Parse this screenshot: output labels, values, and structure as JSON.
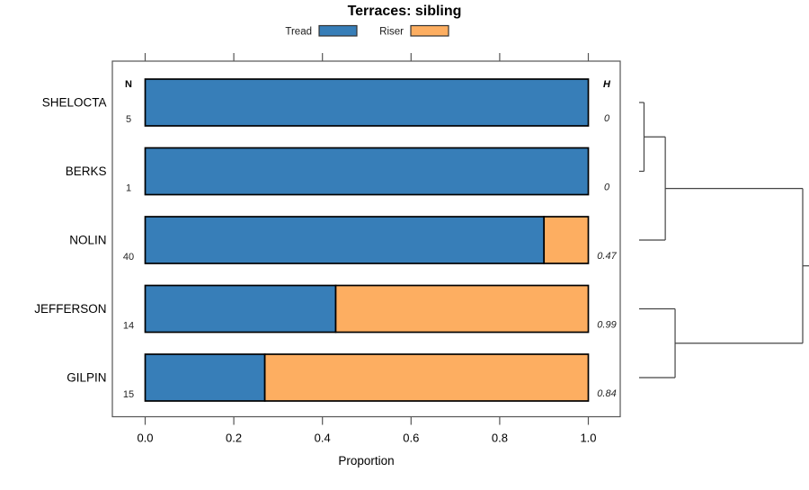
{
  "title": "Terraces: sibling",
  "legend": [
    {
      "label": "Tread",
      "color": "#377EB8"
    },
    {
      "label": "Riser",
      "color": "#FDAE61"
    }
  ],
  "columns": {
    "n_header": "N",
    "h_header": "H"
  },
  "axis": {
    "label": "Proportion",
    "ticks": [
      "0.0",
      "0.2",
      "0.4",
      "0.6",
      "0.8",
      "1.0"
    ],
    "tick_values": [
      0,
      0.2,
      0.4,
      0.6,
      0.8,
      1.0
    ]
  },
  "colors": {
    "tread": "#377EB8",
    "riser": "#FDAE61",
    "bar_border": "#000000",
    "frame": "#555555",
    "dendrogram": "#444444"
  },
  "chart_data": {
    "type": "bar",
    "subtype": "horizontal-stacked-proportion",
    "title": "Terraces: sibling",
    "xlabel": "Proportion",
    "xlim": [
      0,
      1
    ],
    "series_names": [
      "Tread",
      "Riser"
    ],
    "categories": [
      "SHELOCTA",
      "BERKS",
      "NOLIN",
      "JEFFERSON",
      "GILPIN"
    ],
    "rows": [
      {
        "label": "SHELOCTA",
        "n": "5",
        "tread": 1.0,
        "riser": 0.0,
        "h": "0"
      },
      {
        "label": "BERKS",
        "n": "1",
        "tread": 1.0,
        "riser": 0.0,
        "h": "0"
      },
      {
        "label": "NOLIN",
        "n": "40",
        "tread": 0.9,
        "riser": 0.1,
        "h": "0.47"
      },
      {
        "label": "JEFFERSON",
        "n": "14",
        "tread": 0.43,
        "riser": 0.57,
        "h": "0.99"
      },
      {
        "label": "GILPIN",
        "n": "15",
        "tread": 0.27,
        "riser": 0.73,
        "h": "0.84"
      }
    ],
    "dendrogram": {
      "description": "right-side cluster tree, join heights normalized 0-1",
      "joins": [
        {
          "id": "join0",
          "children": [
            "SHELOCTA",
            "BERKS"
          ],
          "height": 0.03
        },
        {
          "id": "join1",
          "children": [
            "join0",
            "NOLIN"
          ],
          "height": 0.16
        },
        {
          "id": "join2",
          "children": [
            "JEFFERSON",
            "GILPIN"
          ],
          "height": 0.22
        },
        {
          "id": "join3",
          "children": [
            "join1",
            "join2"
          ],
          "height": 1.0
        }
      ]
    },
    "legend_position": "top-center",
    "grid": false
  }
}
